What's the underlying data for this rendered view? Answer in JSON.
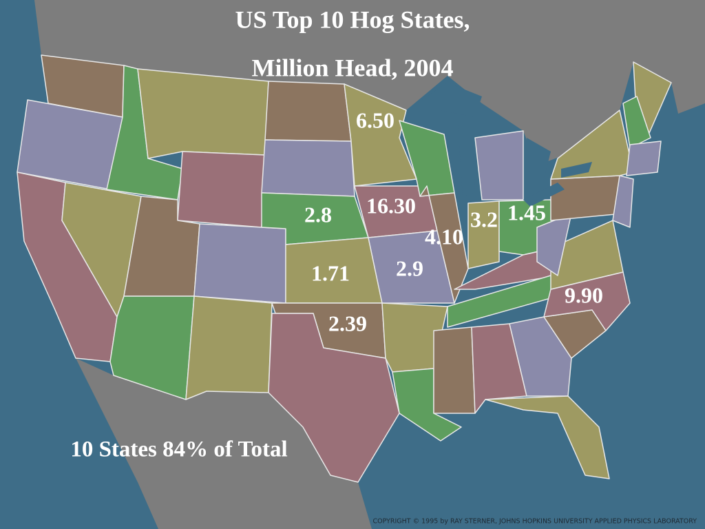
{
  "title": [
    "US Top 10 Hog States,",
    "Million Head, 2004"
  ],
  "state_labels": [
    "6.50",
    "16.30",
    "2.8",
    "3.2",
    "1.45",
    "4.10",
    "1.71",
    "2.9",
    "9.90",
    "2.39"
  ],
  "footnote": "10 States 84% of Total",
  "copyright": "COPYRIGHT © 1995 by RAY STERNER, JOHNS HOPKINS UNIVERSITY APPLIED PHYSICS LABORATORY"
}
